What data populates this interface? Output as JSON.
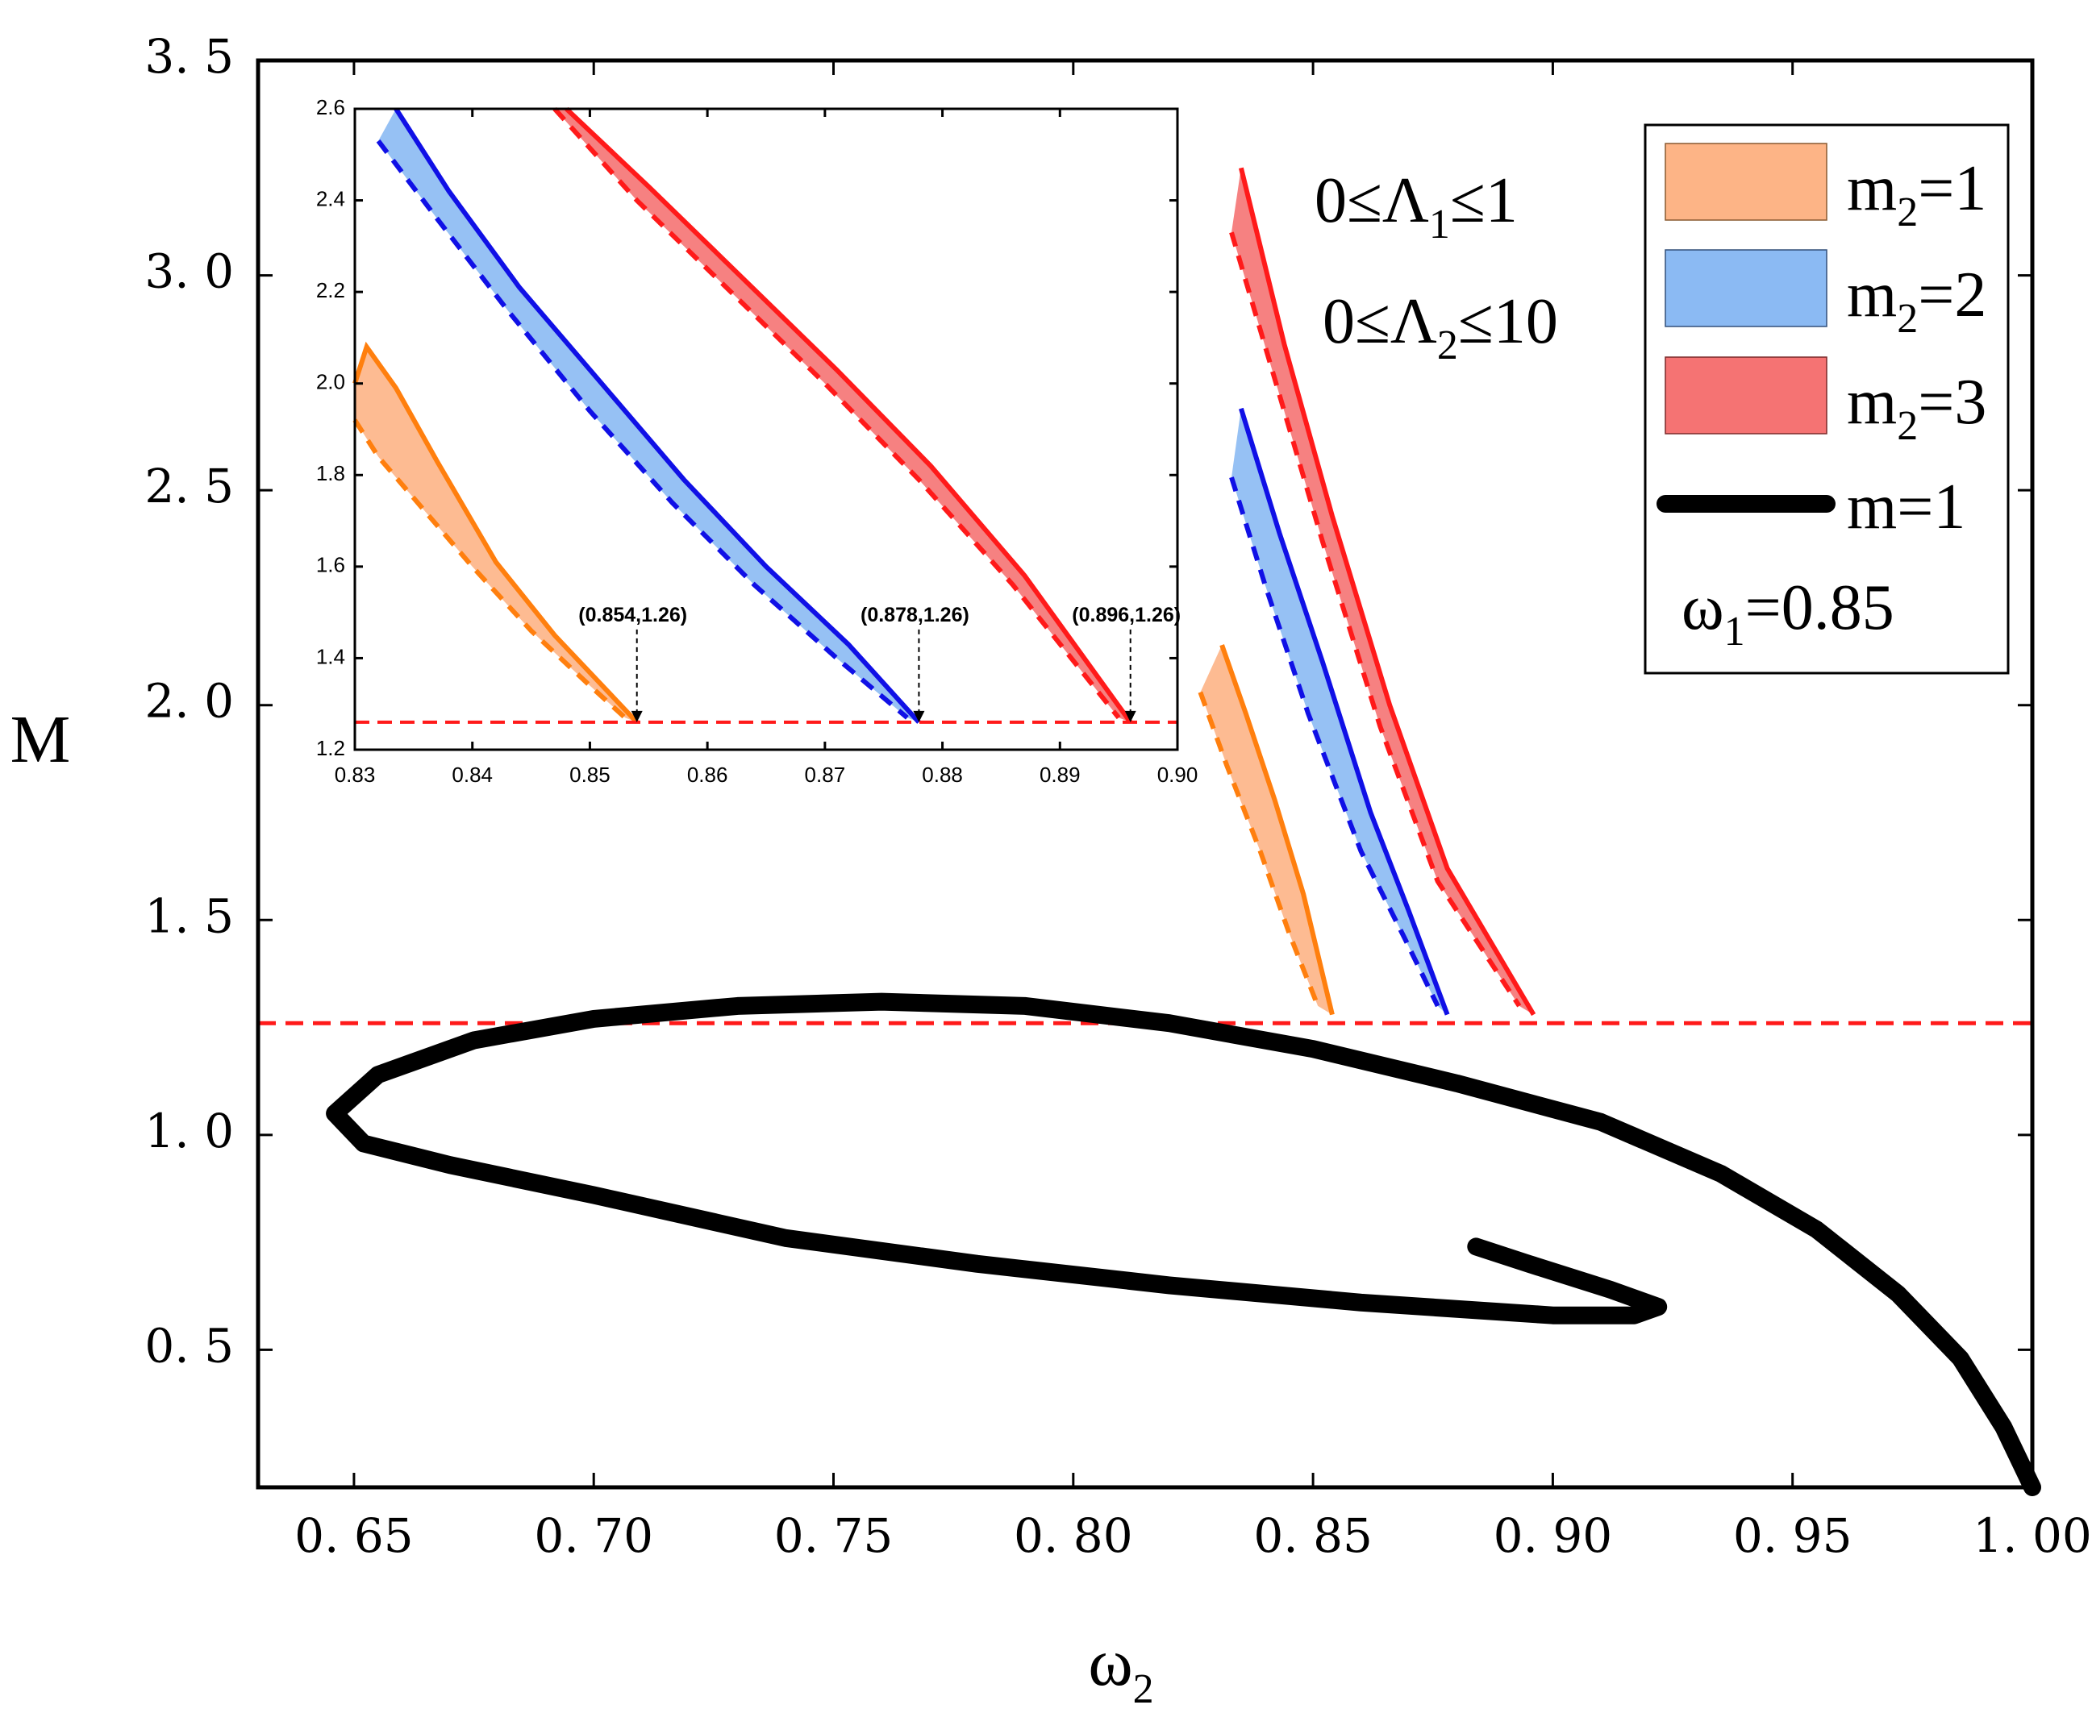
{
  "chart_data": [
    {
      "type": "line",
      "panel": "main",
      "xlabel": "ω",
      "xlabel_sub": "2",
      "ylabel": "M",
      "xlim": [
        0.63,
        1.0
      ],
      "ylim": [
        0.18,
        3.5
      ],
      "xticks": [
        0.65,
        0.7,
        0.75,
        0.8,
        0.85,
        0.9,
        0.95,
        1.0
      ],
      "xtick_labels": [
        "0. 65",
        "0. 70",
        "0. 75",
        "0. 80",
        "0. 85",
        "0. 90",
        "0. 95",
        "1. 00"
      ],
      "yticks": [
        0.5,
        1.0,
        1.5,
        2.0,
        2.5,
        3.0,
        3.5
      ],
      "ytick_labels": [
        "0. 5",
        "1. 0",
        "1. 5",
        "2. 0",
        "2. 5",
        "3. 0",
        "3. 5"
      ],
      "annotations": {
        "lambda1": {
          "pre": "0≤Λ",
          "sub": "1",
          "post": "≤1"
        },
        "lambda2": {
          "pre": "0≤Λ",
          "sub": "2",
          "post": "≤10"
        }
      },
      "legend": {
        "placement": "top-right",
        "entries": [
          {
            "kind": "band",
            "pre": "m",
            "sub": "2",
            "post": "=1",
            "color": "#FDB486"
          },
          {
            "kind": "band",
            "pre": "m",
            "sub": "2",
            "post": "=2",
            "color": "#8BBAF3"
          },
          {
            "kind": "band",
            "pre": "m",
            "sub": "2",
            "post": "=3",
            "color": "#F57373"
          },
          {
            "kind": "line",
            "pre": "",
            "sub": "",
            "post": "m=1",
            "color": "#000000"
          }
        ],
        "omega": {
          "pre": "ω",
          "sub": "1",
          "post": "=0.85"
        }
      },
      "reference_line": {
        "y": 1.26,
        "color": "#FF1A1A",
        "style": "dashed"
      },
      "bands": [
        {
          "name": "m2=1",
          "line_color": "#FF7F0E",
          "fill_color": "#FDB486",
          "upper": [
            [
              0.831,
              2.14
            ],
            [
              0.836,
              1.98
            ],
            [
              0.842,
              1.78
            ],
            [
              0.848,
              1.56
            ],
            [
              0.854,
              1.28
            ]
          ],
          "lower": [
            [
              0.8265,
              2.03
            ],
            [
              0.832,
              1.86
            ],
            [
              0.839,
              1.66
            ],
            [
              0.845,
              1.47
            ],
            [
              0.851,
              1.3
            ]
          ]
        },
        {
          "name": "m2=2",
          "line_color": "#1010E6",
          "fill_color": "#8BBAF3",
          "upper": [
            [
              0.835,
              2.69
            ],
            [
              0.843,
              2.4
            ],
            [
              0.852,
              2.1
            ],
            [
              0.862,
              1.75
            ],
            [
              0.87,
              1.52
            ],
            [
              0.878,
              1.28
            ]
          ],
          "lower": [
            [
              0.833,
              2.53
            ],
            [
              0.84,
              2.28
            ],
            [
              0.849,
              1.98
            ],
            [
              0.86,
              1.66
            ],
            [
              0.869,
              1.46
            ],
            [
              0.876,
              1.3
            ]
          ]
        },
        {
          "name": "m2=3",
          "line_color": "#FF1A1A",
          "fill_color": "#F57373",
          "upper": [
            [
              0.835,
              3.25
            ],
            [
              0.844,
              2.84
            ],
            [
              0.854,
              2.44
            ],
            [
              0.866,
              2.0
            ],
            [
              0.878,
              1.62
            ],
            [
              0.896,
              1.28
            ]
          ],
          "lower": [
            [
              0.833,
              3.1
            ],
            [
              0.842,
              2.76
            ],
            [
              0.852,
              2.38
            ],
            [
              0.864,
              1.95
            ],
            [
              0.876,
              1.59
            ],
            [
              0.893,
              1.3
            ]
          ]
        }
      ],
      "series": [
        {
          "name": "m=1",
          "color": "#000000",
          "points": [
            [
              1.0,
              0.18
            ],
            [
              0.994,
              0.32
            ],
            [
              0.985,
              0.48
            ],
            [
              0.972,
              0.63
            ],
            [
              0.955,
              0.78
            ],
            [
              0.935,
              0.91
            ],
            [
              0.91,
              1.03
            ],
            [
              0.88,
              1.12
            ],
            [
              0.85,
              1.2
            ],
            [
              0.82,
              1.26
            ],
            [
              0.79,
              1.3
            ],
            [
              0.76,
              1.31
            ],
            [
              0.73,
              1.3
            ],
            [
              0.7,
              1.27
            ],
            [
              0.675,
              1.22
            ],
            [
              0.655,
              1.14
            ],
            [
              0.646,
              1.05
            ],
            [
              0.652,
              0.98
            ],
            [
              0.67,
              0.93
            ],
            [
              0.7,
              0.86
            ],
            [
              0.74,
              0.76
            ],
            [
              0.78,
              0.7
            ],
            [
              0.82,
              0.65
            ],
            [
              0.86,
              0.61
            ],
            [
              0.9,
              0.58
            ],
            [
              0.917,
              0.58
            ],
            [
              0.922,
              0.6
            ],
            [
              0.912,
              0.64
            ],
            [
              0.895,
              0.7
            ],
            [
              0.884,
              0.74
            ]
          ]
        }
      ]
    },
    {
      "type": "line",
      "panel": "inset",
      "xlim": [
        0.83,
        0.9
      ],
      "ylim": [
        1.2,
        2.6
      ],
      "xticks": [
        0.83,
        0.84,
        0.85,
        0.86,
        0.87,
        0.88,
        0.89,
        0.9
      ],
      "xtick_labels": [
        "0.83",
        "0.84",
        "0.85",
        "0.86",
        "0.87",
        "0.88",
        "0.89",
        "0.90"
      ],
      "yticks": [
        1.2,
        1.4,
        1.6,
        1.8,
        2.0,
        2.2,
        2.4,
        2.6
      ],
      "ytick_labels": [
        "1.2",
        "1.4",
        "1.6",
        "1.8",
        "2.0",
        "2.2",
        "2.4",
        "2.6"
      ],
      "reference_line": {
        "y": 1.26,
        "color": "#FF1A1A",
        "style": "dashed"
      },
      "point_labels": [
        {
          "text": "(0.854,1.26)",
          "x": 0.854,
          "y": 1.26
        },
        {
          "text": "(0.878,1.26)",
          "x": 0.878,
          "y": 1.26
        },
        {
          "text": "(0.896,1.26)",
          "x": 0.896,
          "y": 1.26
        }
      ],
      "bands": [
        {
          "name": "m2=1",
          "line_color": "#FF7F0E",
          "fill_color": "#FDB486",
          "upper": [
            [
              0.83,
              2.0
            ],
            [
              0.831,
              2.08
            ],
            [
              0.8335,
              1.99
            ],
            [
              0.837,
              1.83
            ],
            [
              0.842,
              1.61
            ],
            [
              0.847,
              1.45
            ],
            [
              0.854,
              1.26
            ]
          ],
          "lower": [
            [
              0.83,
              1.92
            ],
            [
              0.832,
              1.84
            ],
            [
              0.836,
              1.72
            ],
            [
              0.84,
              1.6
            ],
            [
              0.845,
              1.46
            ],
            [
              0.85,
              1.34
            ],
            [
              0.853,
              1.27
            ]
          ]
        },
        {
          "name": "m2=2",
          "line_color": "#1010E6",
          "fill_color": "#8BBAF3",
          "upper": [
            [
              0.8335,
              2.6
            ],
            [
              0.838,
              2.42
            ],
            [
              0.844,
              2.21
            ],
            [
              0.851,
              2.0
            ],
            [
              0.858,
              1.79
            ],
            [
              0.865,
              1.6
            ],
            [
              0.872,
              1.43
            ],
            [
              0.878,
              1.26
            ]
          ],
          "lower": [
            [
              0.832,
              2.53
            ],
            [
              0.837,
              2.36
            ],
            [
              0.843,
              2.16
            ],
            [
              0.85,
              1.94
            ],
            [
              0.857,
              1.74
            ],
            [
              0.864,
              1.56
            ],
            [
              0.871,
              1.4
            ],
            [
              0.877,
              1.27
            ]
          ]
        },
        {
          "name": "m2=3",
          "line_color": "#FF1A1A",
          "fill_color": "#F57373",
          "upper": [
            [
              0.848,
              2.6
            ],
            [
              0.855,
              2.43
            ],
            [
              0.863,
              2.23
            ],
            [
              0.871,
              2.03
            ],
            [
              0.879,
              1.82
            ],
            [
              0.887,
              1.58
            ],
            [
              0.896,
              1.26
            ]
          ],
          "lower": [
            [
              0.847,
              2.6
            ],
            [
              0.854,
              2.4
            ],
            [
              0.862,
              2.2
            ],
            [
              0.87,
              2.0
            ],
            [
              0.878,
              1.79
            ],
            [
              0.886,
              1.56
            ],
            [
              0.895,
              1.27
            ]
          ]
        }
      ]
    }
  ]
}
